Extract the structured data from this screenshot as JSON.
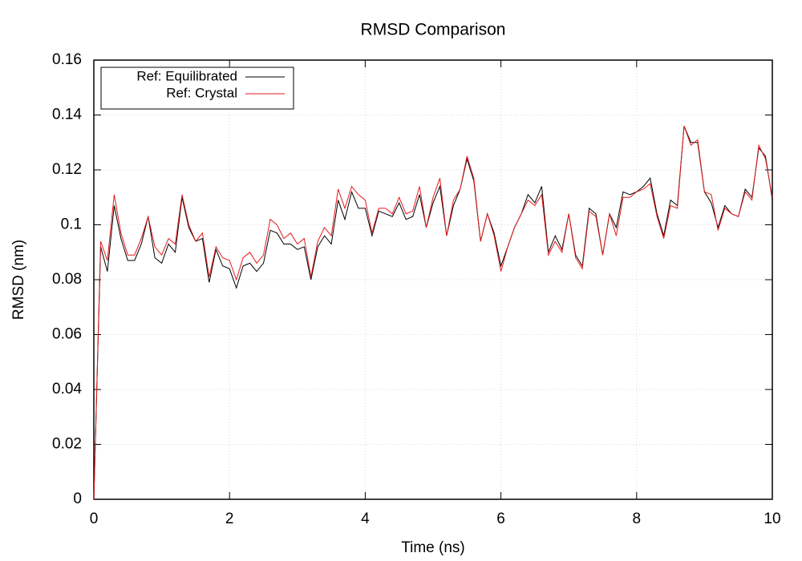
{
  "chart_data": {
    "type": "line",
    "title": "RMSD Comparison",
    "xlabel": "Time (ns)",
    "ylabel": "RMSD (nm)",
    "x": [
      0,
      0.1,
      0.2,
      0.3,
      0.4,
      0.5,
      0.6,
      0.7,
      0.8,
      0.9,
      1,
      1.1,
      1.2,
      1.3,
      1.4,
      1.5,
      1.6,
      1.7,
      1.8,
      1.9,
      2,
      2.1,
      2.2,
      2.3,
      2.4,
      2.5,
      2.6,
      2.7,
      2.8,
      2.9,
      3,
      3.1,
      3.2,
      3.3,
      3.4,
      3.5,
      3.6,
      3.7,
      3.8,
      3.9,
      4,
      4.1,
      4.2,
      4.3,
      4.4,
      4.5,
      4.6,
      4.7,
      4.8,
      4.9,
      5,
      5.1,
      5.2,
      5.3,
      5.4,
      5.5,
      5.6,
      5.7,
      5.8,
      5.9,
      6,
      6.1,
      6.2,
      6.3,
      6.4,
      6.5,
      6.6,
      6.7,
      6.8,
      6.9,
      7,
      7.1,
      7.2,
      7.3,
      7.4,
      7.5,
      7.6,
      7.7,
      7.8,
      7.9,
      8,
      8.1,
      8.2,
      8.3,
      8.4,
      8.5,
      8.6,
      8.7,
      8.8,
      8.9,
      9,
      9.1,
      9.2,
      9.3,
      9.4,
      9.5,
      9.6,
      9.7,
      9.8,
      9.9,
      10
    ],
    "series": [
      {
        "name": "Ref: Equilibrated",
        "color": "#000000",
        "values": [
          0,
          0.092,
          0.083,
          0.107,
          0.095,
          0.087,
          0.087,
          0.093,
          0.103,
          0.088,
          0.086,
          0.093,
          0.09,
          0.11,
          0.099,
          0.094,
          0.095,
          0.079,
          0.091,
          0.085,
          0.084,
          0.077,
          0.085,
          0.086,
          0.083,
          0.086,
          0.098,
          0.097,
          0.093,
          0.093,
          0.091,
          0.092,
          0.08,
          0.092,
          0.096,
          0.093,
          0.109,
          0.102,
          0.112,
          0.106,
          0.106,
          0.096,
          0.105,
          0.104,
          0.103,
          0.108,
          0.102,
          0.103,
          0.111,
          0.099,
          0.108,
          0.114,
          0.096,
          0.107,
          0.113,
          0.124,
          0.116,
          0.094,
          0.104,
          0.097,
          0.085,
          0.092,
          0.099,
          0.104,
          0.111,
          0.108,
          0.114,
          0.09,
          0.096,
          0.091,
          0.104,
          0.089,
          0.085,
          0.106,
          0.104,
          0.089,
          0.104,
          0.099,
          0.112,
          0.111,
          0.112,
          0.114,
          0.117,
          0.104,
          0.096,
          0.109,
          0.107,
          0.136,
          0.13,
          0.13,
          0.112,
          0.108,
          0.099,
          0.107,
          0.104,
          0.103,
          0.113,
          0.11,
          0.128,
          0.125,
          0.109
        ]
      },
      {
        "name": "Ref: Crystal",
        "color": "#e41a1c",
        "values": [
          0,
          0.094,
          0.087,
          0.111,
          0.097,
          0.089,
          0.089,
          0.095,
          0.103,
          0.092,
          0.089,
          0.095,
          0.093,
          0.111,
          0.1,
          0.094,
          0.097,
          0.081,
          0.092,
          0.088,
          0.087,
          0.08,
          0.088,
          0.09,
          0.086,
          0.089,
          0.102,
          0.1,
          0.095,
          0.097,
          0.093,
          0.095,
          0.081,
          0.094,
          0.099,
          0.096,
          0.113,
          0.106,
          0.114,
          0.111,
          0.109,
          0.097,
          0.106,
          0.106,
          0.104,
          0.11,
          0.104,
          0.105,
          0.114,
          0.099,
          0.11,
          0.117,
          0.096,
          0.109,
          0.113,
          0.125,
          0.117,
          0.094,
          0.104,
          0.096,
          0.083,
          0.092,
          0.099,
          0.104,
          0.109,
          0.107,
          0.111,
          0.089,
          0.094,
          0.09,
          0.104,
          0.088,
          0.084,
          0.105,
          0.103,
          0.089,
          0.104,
          0.096,
          0.11,
          0.11,
          0.112,
          0.113,
          0.115,
          0.103,
          0.095,
          0.107,
          0.106,
          0.136,
          0.129,
          0.131,
          0.112,
          0.111,
          0.098,
          0.106,
          0.104,
          0.103,
          0.112,
          0.109,
          0.129,
          0.124,
          0.11
        ]
      }
    ],
    "xlim": [
      0,
      10
    ],
    "xticks": [
      0,
      2,
      4,
      6,
      8,
      10
    ],
    "ylim": [
      0,
      0.16
    ],
    "yticks": [
      0,
      0.02,
      0.04,
      0.06,
      0.08,
      0.1,
      0.12,
      0.14,
      0.16
    ],
    "grid": true,
    "legend": "upper left"
  }
}
